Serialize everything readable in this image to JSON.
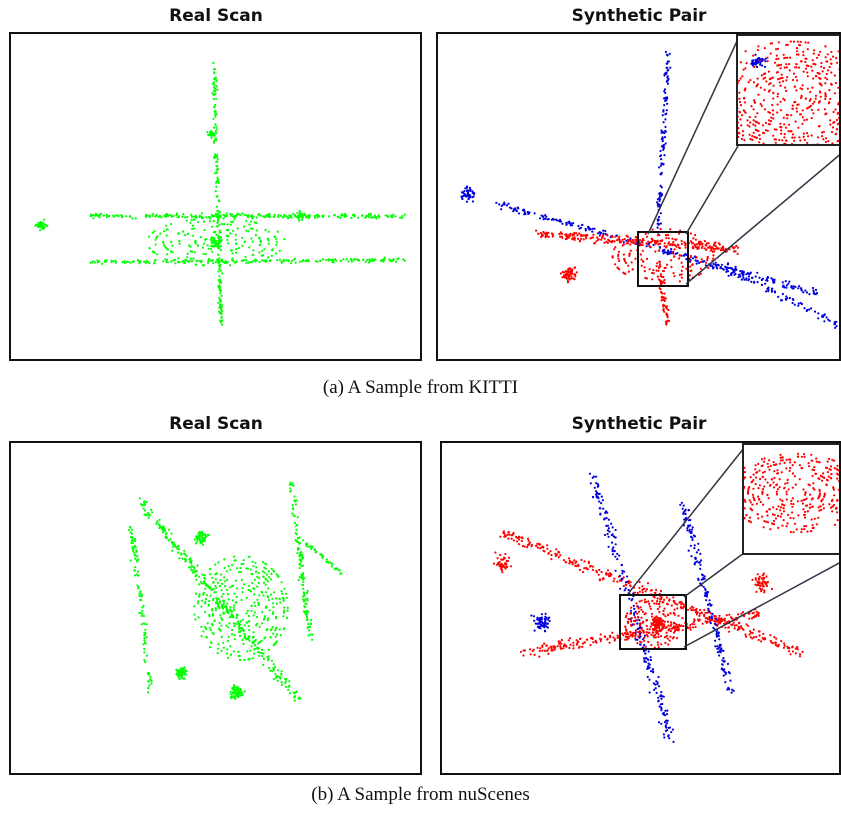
{
  "rows": [
    {
      "real_title": "Real Scan",
      "synthetic_title": "Synthetic Pair",
      "caption": "(a) A Sample from KITTI"
    },
    {
      "real_title": "Real Scan",
      "synthetic_title": "Synthetic Pair",
      "caption": "(b) A Sample from nuScenes"
    }
  ],
  "colors": {
    "real_points": "#00ff00",
    "synthetic_a": "#ff0000",
    "synthetic_b": "#0000dd",
    "frame": "#111111"
  }
}
